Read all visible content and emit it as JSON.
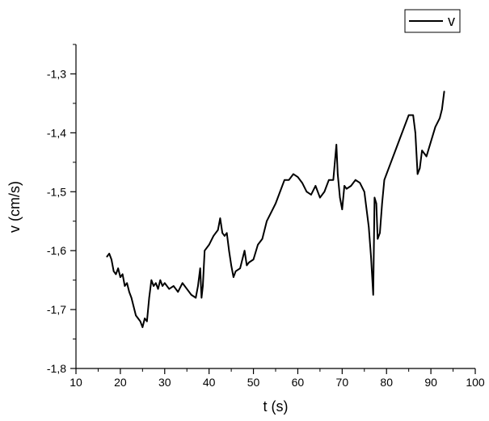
{
  "chart_data": {
    "type": "line",
    "xlabel": "t (s)",
    "ylabel": "v (cm/s)",
    "xlim": [
      10,
      100
    ],
    "ylim": [
      -1.8,
      -1.25
    ],
    "x_ticks": [
      10,
      20,
      30,
      40,
      50,
      60,
      70,
      80,
      90,
      100
    ],
    "x_tick_labels": [
      "10",
      "20",
      "30",
      "40",
      "50",
      "60",
      "70",
      "80",
      "90",
      "100"
    ],
    "y_ticks": [
      -1.8,
      -1.7,
      -1.6,
      -1.5,
      -1.4,
      -1.3
    ],
    "y_tick_labels": [
      "-1,8",
      "-1,7",
      "-1,6",
      "-1,5",
      "-1,4",
      "-1,3"
    ],
    "grid": false,
    "legend_position": "top-right",
    "series": [
      {
        "name": "v",
        "color": "#000000",
        "x": [
          17.0,
          17.5,
          18.0,
          18.5,
          19.0,
          19.5,
          20.0,
          20.5,
          21.0,
          21.5,
          22.0,
          22.5,
          23.0,
          23.5,
          24.0,
          24.5,
          25.0,
          25.5,
          26.0,
          26.5,
          27.0,
          27.5,
          28.0,
          28.5,
          29.0,
          29.5,
          30.0,
          31.0,
          32.0,
          33.0,
          34.0,
          35.0,
          36.0,
          37.0,
          37.5,
          38.0,
          38.3,
          38.6,
          39.0,
          39.5,
          40.0,
          41.0,
          42.0,
          42.5,
          43.0,
          43.5,
          44.0,
          44.5,
          45.0,
          45.5,
          46.0,
          47.0,
          48.0,
          48.5,
          49.0,
          50.0,
          51.0,
          52.0,
          53.0,
          54.0,
          55.0,
          56.0,
          57.0,
          58.0,
          59.0,
          60.0,
          61.0,
          62.0,
          63.0,
          64.0,
          65.0,
          66.0,
          67.0,
          68.0,
          68.7,
          69.0,
          69.5,
          70.0,
          70.5,
          71.0,
          72.0,
          73.0,
          74.0,
          75.0,
          76.0,
          76.5,
          77.0,
          77.3,
          77.7,
          78.0,
          78.5,
          79.0,
          79.5,
          80.0,
          81.0,
          82.0,
          83.0,
          84.0,
          85.0,
          86.0,
          86.5,
          87.0,
          87.5,
          88.0,
          89.0,
          90.0,
          91.0,
          92.0,
          92.5,
          93.0
        ],
        "y": [
          -1.61,
          -1.605,
          -1.615,
          -1.635,
          -1.64,
          -1.63,
          -1.645,
          -1.64,
          -1.66,
          -1.655,
          -1.67,
          -1.68,
          -1.695,
          -1.71,
          -1.715,
          -1.72,
          -1.73,
          -1.715,
          -1.72,
          -1.68,
          -1.65,
          -1.66,
          -1.655,
          -1.665,
          -1.65,
          -1.66,
          -1.655,
          -1.665,
          -1.66,
          -1.67,
          -1.655,
          -1.665,
          -1.675,
          -1.68,
          -1.66,
          -1.63,
          -1.68,
          -1.66,
          -1.6,
          -1.595,
          -1.59,
          -1.575,
          -1.565,
          -1.545,
          -1.57,
          -1.575,
          -1.57,
          -1.6,
          -1.625,
          -1.645,
          -1.635,
          -1.63,
          -1.6,
          -1.625,
          -1.62,
          -1.615,
          -1.59,
          -1.58,
          -1.55,
          -1.535,
          -1.52,
          -1.5,
          -1.48,
          -1.48,
          -1.47,
          -1.475,
          -1.485,
          -1.5,
          -1.505,
          -1.49,
          -1.51,
          -1.5,
          -1.48,
          -1.48,
          -1.42,
          -1.47,
          -1.51,
          -1.53,
          -1.49,
          -1.495,
          -1.49,
          -1.48,
          -1.485,
          -1.5,
          -1.56,
          -1.61,
          -1.675,
          -1.51,
          -1.52,
          -1.58,
          -1.57,
          -1.52,
          -1.48,
          -1.47,
          -1.45,
          -1.43,
          -1.41,
          -1.39,
          -1.37,
          -1.37,
          -1.4,
          -1.47,
          -1.46,
          -1.43,
          -1.44,
          -1.415,
          -1.39,
          -1.375,
          -1.36,
          -1.33
        ]
      }
    ]
  }
}
